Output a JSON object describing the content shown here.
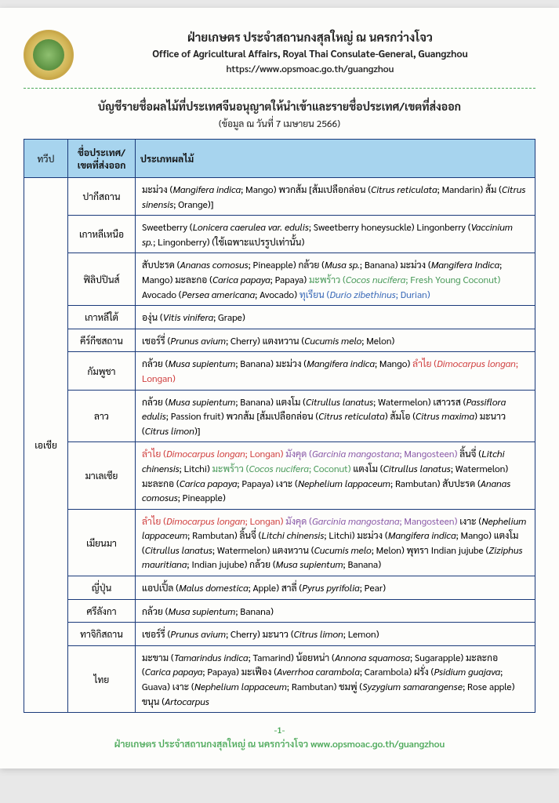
{
  "header": {
    "title_th": "ฝ่ายเกษตร ประจำสถานกงสุลใหญ่ ณ นครกว่างโจว",
    "title_en": "Office of Agricultural Affairs, Royal Thai Consulate-General, Guangzhou",
    "url": "https://www.opsmoac.go.th/guangzhou"
  },
  "document": {
    "title": "บัญชีรายชื่อผลไม้ที่ประเทศจีนอนุญาตให้นำเข้าและรายชื่อประเทศ/เขตที่ส่งออก",
    "subtitle": "(ข้อมูล ณ วันที่ 7 เมษายน 2566)"
  },
  "colors": {
    "header_bg": "#a7d4ee",
    "border": "#1a3a7a",
    "accent_green": "#4aa858",
    "hl_red": "#d04040",
    "hl_purple": "#8a5aa8",
    "hl_blue": "#3a6ab8"
  },
  "table": {
    "headers": {
      "continent": "ทวีป",
      "country": "ชื่อประเทศ/\nเขตที่ส่งออก",
      "fruits": "ประเภทผลไม้"
    },
    "continent": "เอเชีย",
    "rows": [
      {
        "country": "ปากีสถาน",
        "fruits_html": "มะม่วง (<span class='italic'>Mangifera indica</span>; Mango) พวกส้ม [ส้มเปลือกล่อน (<span class='italic'>Citrus reticulata</span>; Mandarin) ส้ม (<span class='italic'>Citrus sinensis</span>; Orange)]"
      },
      {
        "country": "เกาหลีเหนือ",
        "fruits_html": "Sweetberry (<span class='italic'>Lonicera caerulea var. edulis</span>; Sweetberry honeysuckle) Lingonberry (<span class='italic'>Vaccinium sp.</span>; Lingonberry) (ใช้เฉพาะแปรรูปเท่านั้น)"
      },
      {
        "country": "ฟิลิปปินส์",
        "fruits_html": "สับปะรด (<span class='italic'>Ananas comosus</span>; Pineapple) กล้วย (<span class='italic'>Musa sp.</span>; Banana) มะม่วง (<span class='italic'>Mangifera Indica</span>; Mango) มะละกอ (<span class='italic'>Carica papaya</span>; Papaya) <span class='hl-green'>มะพร้าว (<span class='italic'>Cocos nucifera</span>; Fresh Young Coconut)</span> Avocado (<span class='italic'>Persea americana</span>; Avocado) <span class='hl-blue'>ทุเรียน (<span class='italic'>Durio zibethinus</span>; Durian)</span>"
      },
      {
        "country": "เกาหลีใต้",
        "fruits_html": "องุ่น (<span class='italic'>Vitis vinifera</span>; Grape)"
      },
      {
        "country": "คีร์กีซสถาน",
        "fruits_html": "เชอร์รี่ (<span class='italic'>Prunus avium</span>; Cherry) แตงหวาน (<span class='italic'>Cucumis melo</span>; Melon)"
      },
      {
        "country": "กัมพูชา",
        "fruits_html": "กล้วย (<span class='italic'>Musa supientum</span>; Banana) มะม่วง (<span class='italic'>Mangifera indica</span>; Mango) <span class='hl-red'>ลำไย (<span class='italic'>Dimocarpus longan</span>; Longan)</span>"
      },
      {
        "country": "ลาว",
        "fruits_html": "กล้วย (<span class='italic'>Musa supientum</span>; Banana) แตงโม (<span class='italic'>Citrullus lanatus</span>; Watermelon) เสาวรส (<span class='italic'>Passiflora edulis</span>; Passion fruit) พวกส้ม [ส้มเปลือกล่อน (<span class='italic'>Citrus reticulata</span>) ส้มโอ (<span class='italic'>Citrus maxima</span>) มะนาว (<span class='italic'>Citrus limon</span>)]"
      },
      {
        "country": "มาเลเซีย",
        "fruits_html": "<span class='hl-red'>ลำไย (<span class='italic'>Dimocarpus longan</span>; Longan)</span> <span class='hl-purple'>มังคุด (<span class='italic'>Garcinia mangostana</span>; Mangosteen)</span> ลิ้นจี่ (<span class='italic'>Litchi chinensis</span>; Litchi) <span class='hl-green'>มะพร้าว (<span class='italic'>Cocos nucifera</span>; Coconut)</span> แตงโม (<span class='italic'>Citrullus lanatus</span>; Watermelon) มะละกอ (<span class='italic'>Carica papaya</span>; Papaya) เงาะ (<span class='italic'>Nephelium lappaceum</span>; Rambutan) สับปะรด (<span class='italic'>Ananas comosus</span>; Pineapple)"
      },
      {
        "country": "เมียนมา",
        "fruits_html": "<span class='hl-red'>ลำไย (<span class='italic'>Dimocarpus longan</span>; Longan)</span> <span class='hl-purple'>มังคุด (<span class='italic'>Garcinia mangostana</span>; Mangosteen)</span> เงาะ (<span class='italic'>Nephelium lappaceum</span>; Rambutan) ลิ้นจี่ (<span class='italic'>Litchi chinensis</span>; Litchi) มะม่วง (<span class='italic'>Mangifera indica</span>; Mango) แตงโม (<span class='italic'>Citrullus lanatus</span>; Watermelon) แตงหวาน (<span class='italic'>Cucumis melo</span>; Melon) พุทรา Indian jujube (<span class='italic'>Ziziphus mauritiana</span>; Indian jujube) กล้วย (<span class='italic'>Musa supientum</span>; Banana)"
      },
      {
        "country": "ญี่ปุ่น",
        "fruits_html": "แอปเปิ้ล (<span class='italic'>Malus domestica</span>; Apple) สาลี่ (<span class='italic'>Pyrus pyrifolia</span>; Pear)"
      },
      {
        "country": "ศรีลังกา",
        "fruits_html": "กล้วย (<span class='italic'>Musa supientum</span>; Banana)"
      },
      {
        "country": "ทาจิกิสถาน",
        "fruits_html": "เชอร์รี่ (<span class='italic'>Prunus avium</span>; Cherry) มะนาว (<span class='italic'>Citrus limon</span>; Lemon)"
      },
      {
        "country": "ไทย",
        "fruits_html": "มะขาม (<span class='italic'>Tamarindus indica</span>; Tamarind) น้อยหน่า (<span class='italic'>Annona squamosa</span>; Sugarapple) มะละกอ (<span class='italic'>Carica papaya</span>; Papaya) มะเฟือง (<span class='italic'>Averrhoa carambola</span>; Carambola) ฝรั่ง (<span class='italic'>Psidium guajava</span>; Guava) เงาะ (<span class='italic'>Nephelium lappaceum</span>; Rambutan) ชมพู่ (<span class='italic'>Syzygium samarangense</span>; Rose apple) ขนุน (<span class='italic'>Artocarpus</span>"
      }
    ]
  },
  "footer": {
    "page": "-1-",
    "text": "ฝ่ายเกษตร ประจำสถานกงสุลใหญ่ ณ นครกว่างโจว www.opsmoac.go.th/guangzhou"
  }
}
